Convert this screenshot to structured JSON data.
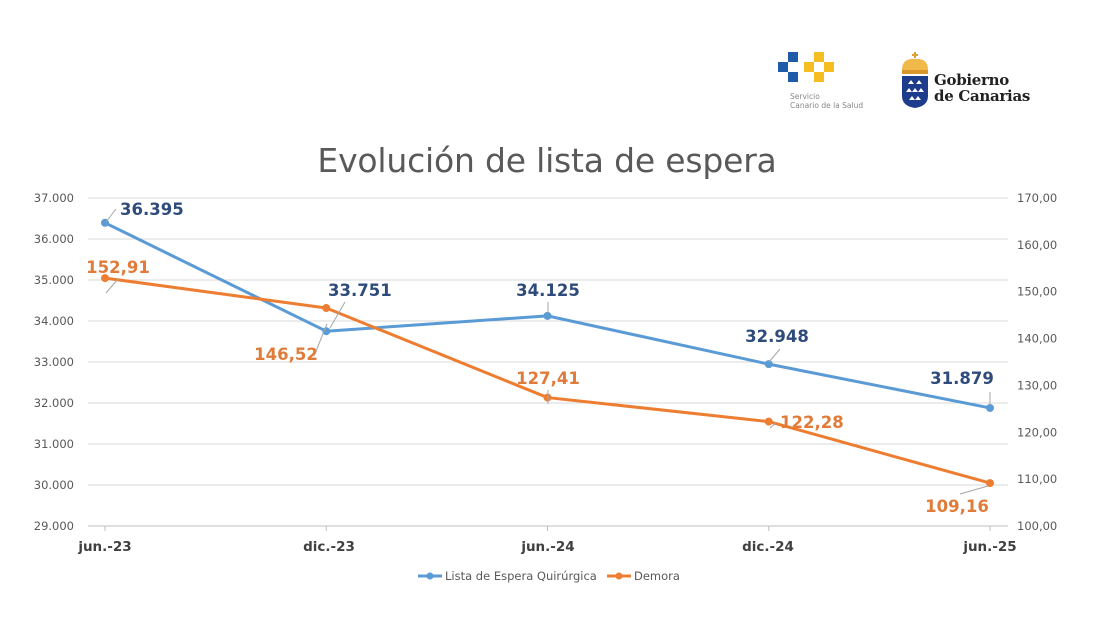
{
  "logos": {
    "scs_line1": "Servicio",
    "scs_line2": "Canario de la Salud",
    "gob_line1": "Gobierno",
    "gob_line2": "de Canarias"
  },
  "chart_data": {
    "type": "line",
    "title": "Evolución de lista de espera",
    "categories": [
      "jun.-23",
      "dic.-23",
      "jun.-24",
      "dic.-24",
      "jun.-25"
    ],
    "series": [
      {
        "name": "Lista de Espera Quirúrgica",
        "axis": "left",
        "color": "#5B9BD5",
        "label_color": "#2F4B7C",
        "values": [
          36395,
          33751,
          34125,
          32948,
          31879
        ],
        "labels": [
          "36.395",
          "33.751",
          "34.125",
          "32.948",
          "31.879"
        ]
      },
      {
        "name": "Demora",
        "axis": "right",
        "color": "#ED7D31",
        "label_color": "#E07B39",
        "values": [
          152.91,
          146.52,
          127.41,
          122.28,
          109.16
        ],
        "labels": [
          "152,91",
          "146,52",
          "127,41",
          "122,28",
          "109,16"
        ]
      }
    ],
    "y_left": {
      "min": 29000,
      "max": 37000,
      "step": 1000,
      "tick_labels": [
        "29.000",
        "30.000",
        "31.000",
        "32.000",
        "33.000",
        "34.000",
        "35.000",
        "36.000",
        "37.000"
      ]
    },
    "y_right": {
      "min": 100,
      "max": 170,
      "step": 10,
      "tick_labels": [
        "100,00",
        "110,00",
        "120,00",
        "130,00",
        "140,00",
        "150,00",
        "160,00",
        "170,00"
      ]
    },
    "grid": true,
    "legend": {
      "position": "bottom",
      "entries": [
        "Lista de Espera Quirúrgica",
        "Demora"
      ]
    }
  }
}
